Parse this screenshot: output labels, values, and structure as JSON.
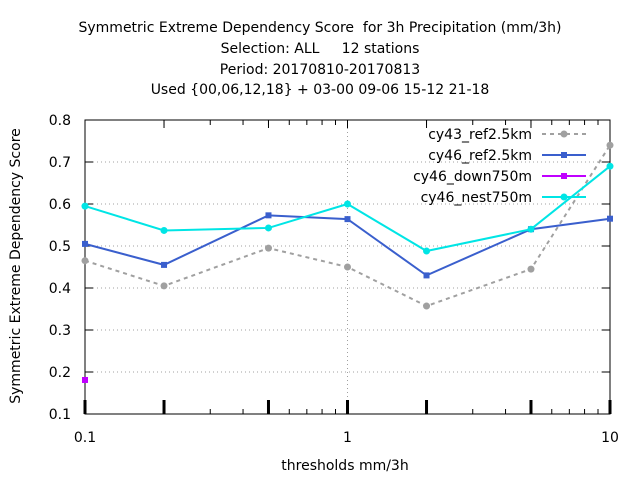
{
  "chart_data": {
    "type": "line",
    "title_lines": [
      "Symmetric Extreme Dependency Score  for 3h Precipitation (mm/3h)",
      "Selection: ALL     12 stations",
      "Period: 20170810-20170813",
      "Used {00,06,12,18} + 03-00 09-06 15-12 21-18"
    ],
    "xlabel": "thresholds mm/3h",
    "ylabel": "Symmetric Extreme Dependency Score",
    "xscale": "log",
    "xlim": [
      0.1,
      10
    ],
    "ylim": [
      0.1,
      0.8
    ],
    "x_tick_labels": [
      "0.1",
      "1",
      "10"
    ],
    "y_tick_labels": [
      "0.1",
      "0.2",
      "0.3",
      "0.4",
      "0.5",
      "0.6",
      "0.7",
      "0.8"
    ],
    "grid": true,
    "legend_position": "top-right",
    "series": [
      {
        "name": "cy43_ref2.5km",
        "color": "#a0a0a0",
        "dashed": true,
        "x": [
          0.1,
          0.2,
          0.5,
          1,
          2,
          5,
          10
        ],
        "y": [
          0.465,
          0.405,
          0.495,
          0.45,
          0.357,
          0.445,
          0.74
        ]
      },
      {
        "name": "cy46_ref2.5km",
        "color": "#3a5fcd",
        "dashed": false,
        "x": [
          0.1,
          0.2,
          0.5,
          1,
          2,
          5,
          10
        ],
        "y": [
          0.505,
          0.455,
          0.573,
          0.564,
          0.43,
          0.54,
          0.565
        ]
      },
      {
        "name": "cy46_down750m",
        "color": "#c000ff",
        "dashed": false,
        "x": [
          0.1
        ],
        "y": [
          0.181
        ]
      },
      {
        "name": "cy46_nest750m",
        "color": "#00e5e5",
        "dashed": false,
        "x": [
          0.1,
          0.2,
          0.5,
          1,
          2,
          5,
          10
        ],
        "y": [
          0.595,
          0.537,
          0.543,
          0.6,
          0.488,
          0.54,
          0.69
        ]
      }
    ]
  }
}
